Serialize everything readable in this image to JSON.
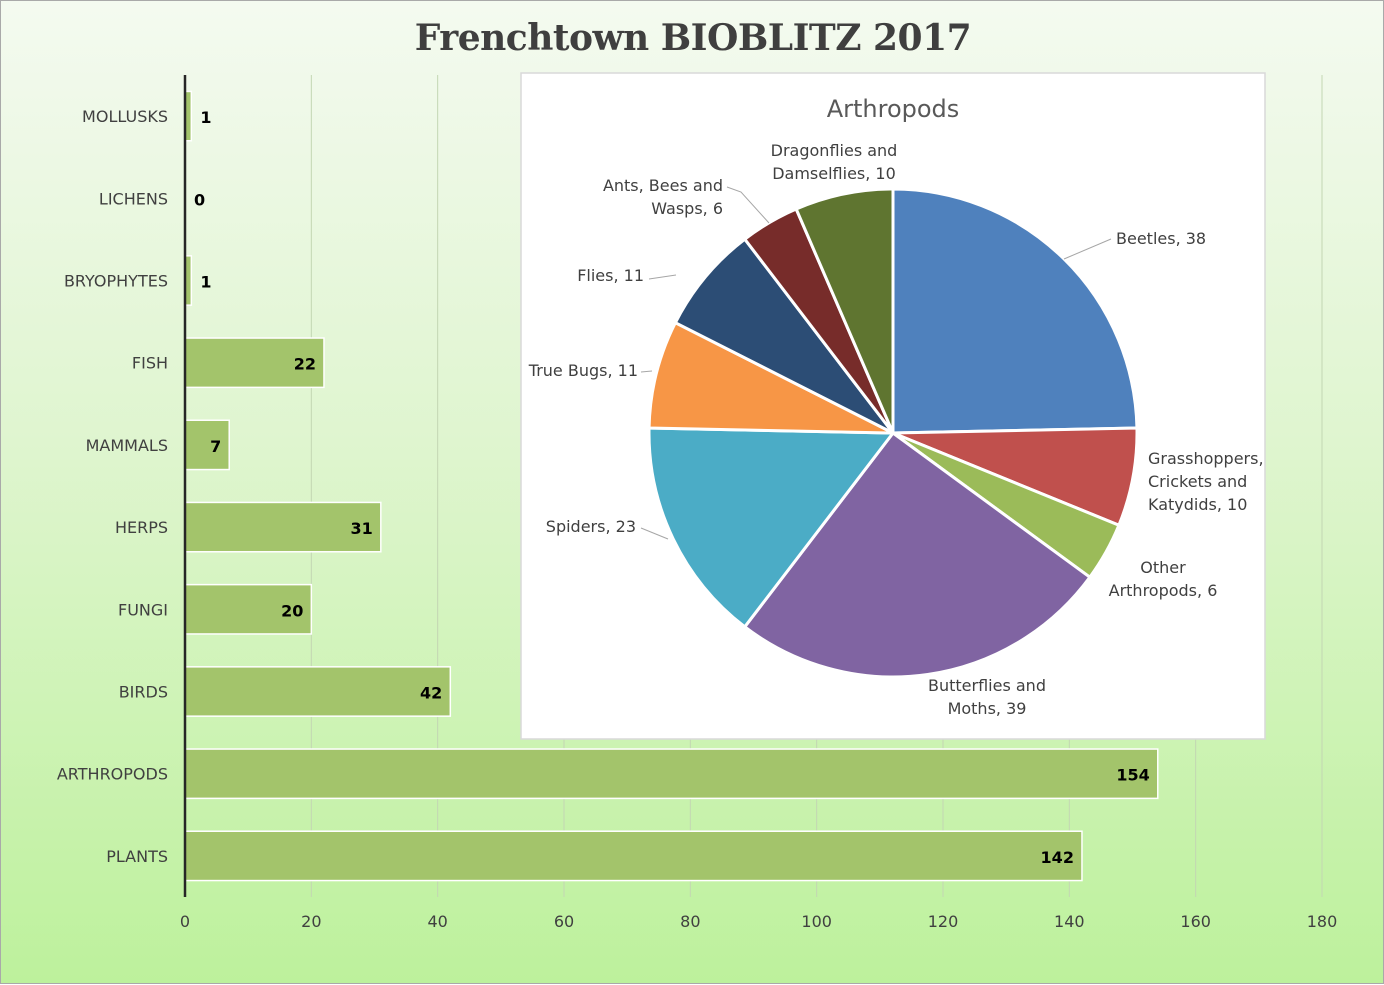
{
  "chart_data": [
    {
      "type": "bar",
      "orientation": "horizontal",
      "title": "Frenchtown BIOBLITZ 2017",
      "categories": [
        "MOLLUSKS",
        "LICHENS",
        "BRYOPHYTES",
        "FISH",
        "MAMMALS",
        "HERPS",
        "FUNGI",
        "BIRDS",
        "ARTHROPODS",
        "PLANTS"
      ],
      "values": [
        1,
        0,
        1,
        22,
        7,
        31,
        20,
        42,
        154,
        142
      ],
      "data_labels": [
        "1",
        "0",
        "1",
        "22",
        "7",
        "31",
        "20",
        "42",
        "154",
        "142"
      ],
      "xlim": [
        0,
        180
      ],
      "xticks": [
        "0",
        "20",
        "40",
        "60",
        "80",
        "100",
        "120",
        "140",
        "160",
        "180"
      ],
      "grid": true,
      "bar_color": "#a3c46b"
    },
    {
      "type": "pie",
      "title": "Arthropods",
      "slices": [
        {
          "label": [
            "Beetles, 38"
          ],
          "value": 38,
          "color": "#4f81bd"
        },
        {
          "label": [
            "Grasshoppers,",
            "Crickets and",
            "Katydids, 10"
          ],
          "value": 10,
          "color": "#c0504d"
        },
        {
          "label": [
            "Other",
            "Arthropods, 6"
          ],
          "value": 6,
          "color": "#9bbb59"
        },
        {
          "label": [
            "Butterflies and",
            "Moths, 39"
          ],
          "value": 39,
          "color": "#8064a2"
        },
        {
          "label": [
            "Spiders, 23"
          ],
          "value": 23,
          "color": "#4bacc6"
        },
        {
          "label": [
            "True Bugs, 11"
          ],
          "value": 11,
          "color": "#f79646"
        },
        {
          "label": [
            "Flies, 11"
          ],
          "value": 11,
          "color": "#2c4d75"
        },
        {
          "label": [
            "Ants, Bees and",
            "Wasps, 6"
          ],
          "value": 6,
          "color": "#772c2a"
        },
        {
          "label": [
            "Dragonflies and",
            "Damselflies, 10"
          ],
          "value": 10,
          "color": "#5f7530"
        }
      ]
    }
  ]
}
